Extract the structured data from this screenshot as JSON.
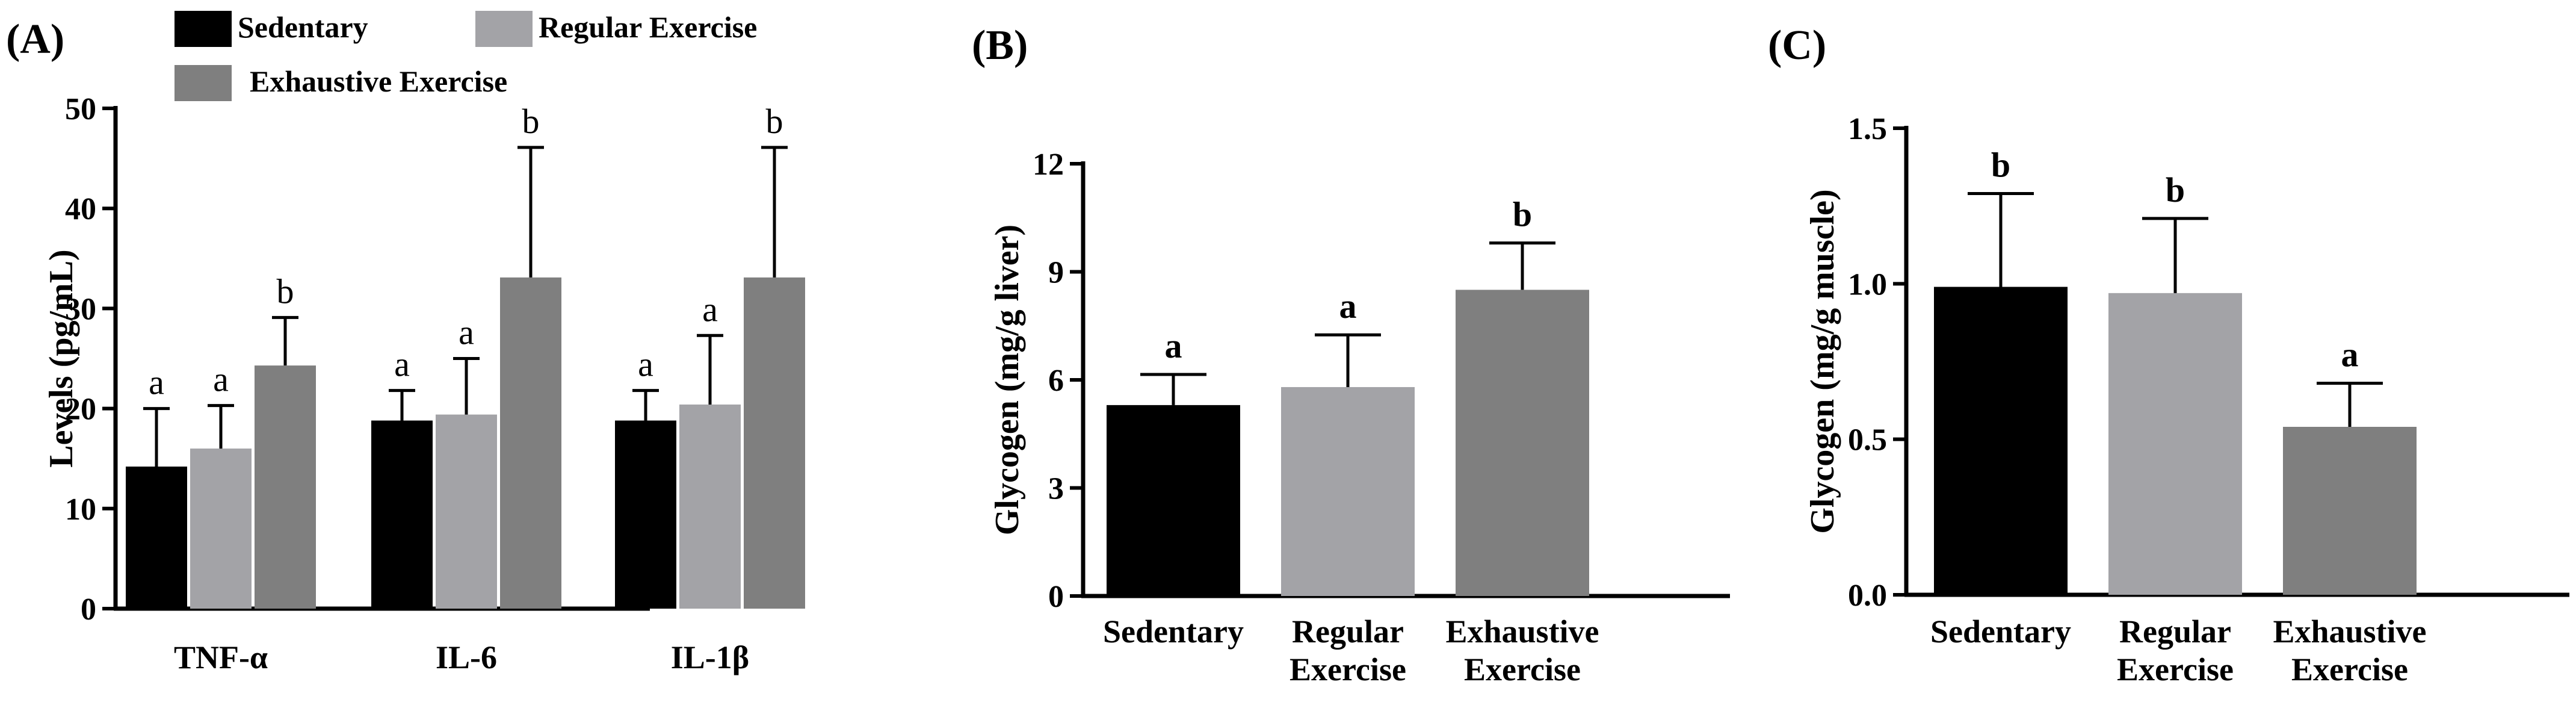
{
  "chart_data": [
    {
      "type": "bar",
      "panel_label": "(A)",
      "ylabel": "Levels (pg/mL)",
      "ylim": [
        0,
        50
      ],
      "yticks": [
        "0",
        "10",
        "20",
        "30",
        "40",
        "50"
      ],
      "categories": [
        "TNF-α",
        "IL-6",
        "IL-1β"
      ],
      "legend": [
        "Sedentary",
        "Regular Exercise",
        "Exhaustive Exercise"
      ],
      "series": [
        {
          "name": "Sedentary",
          "color": "#000000",
          "values": [
            14.2,
            18.8,
            18.8
          ],
          "errors": [
            5.8,
            3.0,
            3.0
          ],
          "letters": [
            "a",
            "a",
            "a"
          ]
        },
        {
          "name": "Regular Exercise",
          "color": "#a3a3a7",
          "values": [
            16.0,
            19.4,
            20.4
          ],
          "errors": [
            4.3,
            5.6,
            6.9
          ],
          "letters": [
            "a",
            "a",
            "a"
          ]
        },
        {
          "name": "Exhaustive Exercise",
          "color": "#7f7f7f",
          "values": [
            24.3,
            33.1,
            33.1
          ],
          "errors": [
            4.8,
            13.0,
            13.0
          ],
          "letters": [
            "b",
            "b",
            "b"
          ]
        }
      ]
    },
    {
      "type": "bar",
      "panel_label": "(B)",
      "ylabel": "Glycogen (mg/g liver)",
      "ylim": [
        0,
        12
      ],
      "yticks": [
        "0",
        "3",
        "6",
        "9",
        "12"
      ],
      "categories": [
        [
          "Sedentary"
        ],
        [
          "Regular",
          "Exercise"
        ],
        [
          "Exhaustive",
          "Exercise"
        ]
      ],
      "values": [
        5.3,
        5.8,
        8.5
      ],
      "errors": [
        0.85,
        1.45,
        1.3
      ],
      "letters": [
        "a",
        "a",
        "b"
      ],
      "colors": [
        "#000000",
        "#a3a3a7",
        "#7f7f7f"
      ]
    },
    {
      "type": "bar",
      "panel_label": "(C)",
      "ylabel": "Glycogen (mg/g muscle)",
      "ylim": [
        0,
        1.5
      ],
      "yticks": [
        "0.0",
        "0.5",
        "1.0",
        "1.5"
      ],
      "categories": [
        [
          "Sedentary"
        ],
        [
          "Regular",
          "Exercise"
        ],
        [
          "Exhaustive",
          "Exercise"
        ]
      ],
      "values": [
        0.99,
        0.97,
        0.54
      ],
      "errors": [
        0.3,
        0.24,
        0.14
      ],
      "letters": [
        "b",
        "b",
        "a"
      ],
      "colors": [
        "#000000",
        "#a3a3a7",
        "#7f7f7f"
      ]
    }
  ]
}
